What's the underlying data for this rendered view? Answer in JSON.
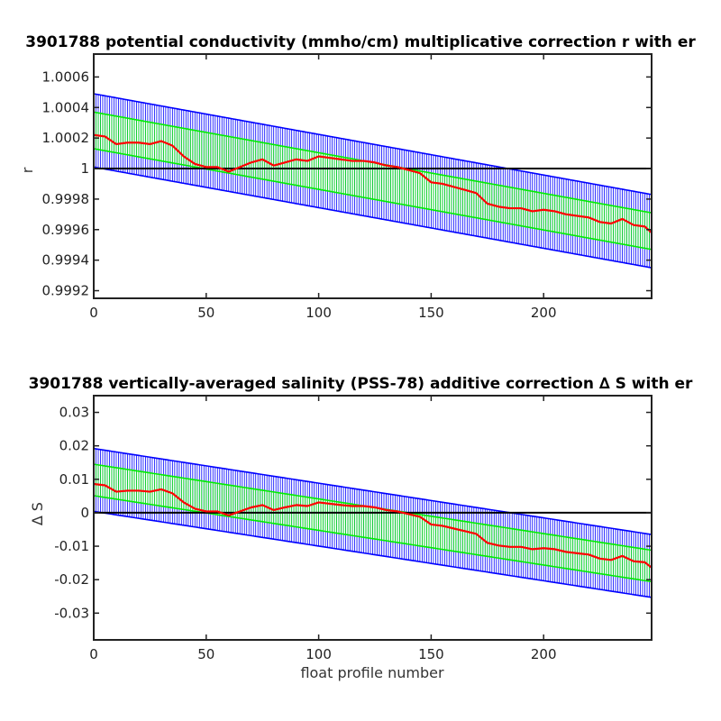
{
  "chart_data": [
    {
      "type": "line",
      "title": "3901788 potential conductivity (mmho/cm) multiplicative correction r with er",
      "xlabel": "",
      "ylabel": "r",
      "xlim": [
        0,
        248
      ],
      "ylim": [
        0.99915,
        1.00075
      ],
      "xticks": [
        0,
        50,
        100,
        150,
        200
      ],
      "yticks": [
        0.9992,
        0.9994,
        0.9996,
        0.9998,
        1,
        1.0002,
        1.0004,
        1.0006
      ],
      "ytick_labels": [
        "0.9992",
        "0.9994",
        "0.9996",
        "0.9998",
        "1",
        "1.0002",
        "1.0004",
        "1.0006"
      ],
      "reference_line": 1,
      "grid": false,
      "series": [
        {
          "role": "2-sigma error bars",
          "color": "#0000ff",
          "x": [
            0,
            248
          ],
          "center": [
            1.00025,
            0.99959
          ],
          "halfwidth": 0.00024
        },
        {
          "role": "1-sigma error bars",
          "color": "#00ee00",
          "x": [
            0,
            248
          ],
          "center": [
            1.00025,
            0.99959
          ],
          "halfwidth": 0.00012
        },
        {
          "role": "fitted correction",
          "color": "#ff0000",
          "x": [
            0,
            5,
            10,
            15,
            20,
            25,
            30,
            35,
            40,
            45,
            50,
            55,
            60,
            65,
            70,
            75,
            80,
            85,
            90,
            95,
            100,
            105,
            110,
            115,
            120,
            125,
            130,
            135,
            140,
            145,
            150,
            155,
            160,
            165,
            170,
            175,
            180,
            185,
            190,
            195,
            200,
            205,
            210,
            215,
            220,
            225,
            230,
            235,
            240,
            245,
            248
          ],
          "values": [
            1.00022,
            1.00021,
            1.00016,
            1.00017,
            1.00017,
            1.00016,
            1.00018,
            1.00015,
            1.00008,
            1.00003,
            1.00001,
            1.00001,
            0.99998,
            1.00001,
            1.00004,
            1.00006,
            1.00002,
            1.00004,
            1.00006,
            1.00005,
            1.00008,
            1.00007,
            1.00006,
            1.00005,
            1.00005,
            1.00004,
            1.00002,
            1.00001,
            0.99999,
            0.99997,
            0.99991,
            0.9999,
            0.99988,
            0.99986,
            0.99984,
            0.99977,
            0.99975,
            0.99974,
            0.99974,
            0.99972,
            0.99973,
            0.99972,
            0.9997,
            0.99969,
            0.99968,
            0.99965,
            0.99964,
            0.99967,
            0.99963,
            0.99962,
            0.99958
          ]
        }
      ]
    },
    {
      "type": "line",
      "title": "3901788 vertically-averaged salinity (PSS-78) additive correction ∆ S with er",
      "xlabel": "float profile number",
      "ylabel": "∆ S",
      "xlim": [
        0,
        248
      ],
      "ylim": [
        -0.038,
        0.035
      ],
      "xticks": [
        0,
        50,
        100,
        150,
        200
      ],
      "yticks": [
        -0.03,
        -0.02,
        -0.01,
        0,
        0.01,
        0.02,
        0.03
      ],
      "ytick_labels": [
        "-0.03",
        "-0.02",
        "-0.01",
        "0",
        "0.01",
        "0.02",
        "0.03"
      ],
      "reference_line": 0,
      "grid": false,
      "series": [
        {
          "role": "2-sigma error bars",
          "color": "#0000ff",
          "x": [
            0,
            248
          ],
          "center": [
            0.0098,
            -0.0159
          ],
          "halfwidth": 0.0094
        },
        {
          "role": "1-sigma error bars",
          "color": "#00ee00",
          "x": [
            0,
            248
          ],
          "center": [
            0.0098,
            -0.0159
          ],
          "halfwidth": 0.0047
        },
        {
          "role": "fitted correction",
          "color": "#ff0000",
          "x": [
            0,
            5,
            10,
            15,
            20,
            25,
            30,
            35,
            40,
            45,
            50,
            55,
            60,
            65,
            70,
            75,
            80,
            85,
            90,
            95,
            100,
            105,
            110,
            115,
            120,
            125,
            130,
            135,
            140,
            145,
            150,
            155,
            160,
            165,
            170,
            175,
            180,
            185,
            190,
            195,
            200,
            205,
            210,
            215,
            220,
            225,
            230,
            235,
            240,
            245,
            248
          ],
          "values": [
            0.0086,
            0.0082,
            0.0063,
            0.0066,
            0.0066,
            0.0063,
            0.007,
            0.0058,
            0.0031,
            0.0012,
            0.0004,
            0.0004,
            -0.0008,
            0.0004,
            0.0016,
            0.0023,
            0.0008,
            0.0016,
            0.0023,
            0.002,
            0.0031,
            0.0027,
            0.0023,
            0.002,
            0.002,
            0.0016,
            0.0008,
            0.0004,
            -0.0004,
            -0.0012,
            -0.0035,
            -0.0039,
            -0.0047,
            -0.0055,
            -0.0063,
            -0.009,
            -0.0098,
            -0.0102,
            -0.0102,
            -0.0109,
            -0.0106,
            -0.0109,
            -0.0117,
            -0.0121,
            -0.0125,
            -0.0137,
            -0.0141,
            -0.0129,
            -0.0145,
            -0.0148,
            -0.0164
          ]
        }
      ]
    }
  ]
}
